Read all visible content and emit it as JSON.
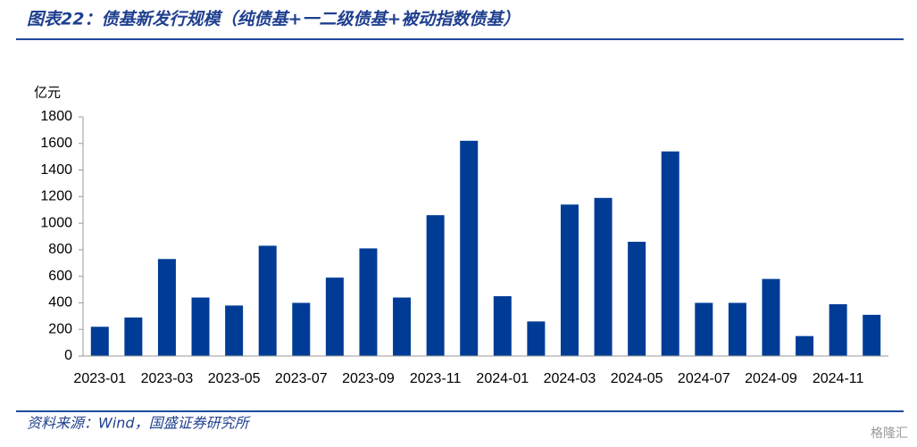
{
  "chart_data": {
    "type": "bar",
    "title": "图表22：债基新发行规模（纯债基+一二级债基+被动指数债基）",
    "y_label": "亿元",
    "source": "资料来源：Wind，国盛证券研究所",
    "watermark": "格隆汇",
    "categories": [
      "2023-01",
      null,
      "2023-03",
      null,
      "2023-05",
      null,
      "2023-07",
      null,
      "2023-09",
      null,
      "2023-11",
      null,
      "2024-01",
      null,
      "2024-03",
      null,
      "2024-05",
      null,
      "2024-07",
      null,
      "2024-09",
      null,
      "2024-11",
      null
    ],
    "values": [
      220,
      290,
      730,
      440,
      380,
      830,
      400,
      590,
      810,
      440,
      1060,
      1620,
      450,
      260,
      1140,
      1190,
      860,
      1540,
      400,
      400,
      580,
      150,
      390,
      310
    ],
    "color": "#003c96",
    "ylim": [
      0,
      1800
    ],
    "yticks": [
      0,
      200,
      400,
      600,
      800,
      1000,
      1200,
      1400,
      1600,
      1800
    ],
    "grid": false
  }
}
